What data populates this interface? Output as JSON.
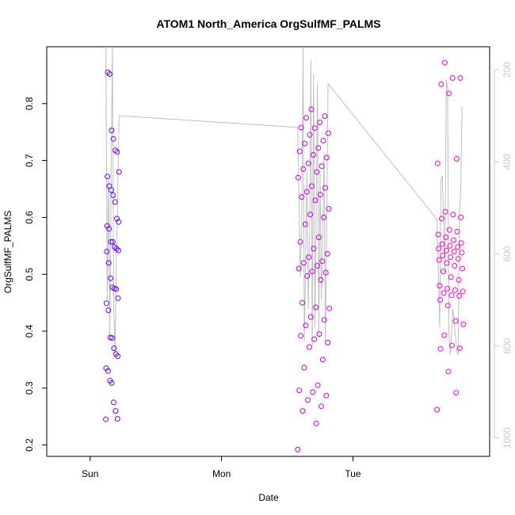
{
  "chart_data": {
    "type": "scatter",
    "title": "ATOM1 North_America OrgSulfMF_PALMS",
    "xlabel": "Date",
    "ylabel": "OrgSulfMF_PALMS",
    "x_ticks": [
      "Sun",
      "Mon",
      "Tue"
    ],
    "y_ticks": [
      "0.2",
      "0.3",
      "0.4",
      "0.5",
      "0.6",
      "0.7",
      "0.8"
    ],
    "ylim": [
      0.18,
      0.9
    ],
    "y2_ticks": [
      "200",
      "400",
      "600",
      "800",
      "1000"
    ],
    "y2lim": [
      1040,
      150
    ],
    "y2_note": "pressure profile (right axis, inverted) drawn as grey line",
    "color_scale": [
      "#6a00ff",
      "#ff00cc"
    ],
    "grid": false,
    "clusters": [
      {
        "name": "flight1",
        "x_start": 0.12,
        "x_end": 0.22,
        "values": [
          0.245,
          0.246,
          0.26,
          0.275,
          0.309,
          0.313,
          0.33,
          0.335,
          0.356,
          0.36,
          0.37,
          0.388,
          0.389,
          0.437,
          0.449,
          0.458,
          0.474,
          0.475,
          0.477,
          0.493,
          0.52,
          0.54,
          0.542,
          0.545,
          0.548,
          0.557,
          0.557,
          0.58,
          0.585,
          0.592,
          0.598,
          0.627,
          0.639,
          0.648,
          0.655,
          0.672,
          0.68,
          0.715,
          0.718,
          0.738,
          0.753,
          0.852,
          0.855
        ]
      },
      {
        "name": "flight2",
        "x_start": 1.58,
        "x_end": 1.82,
        "values": [
          0.192,
          0.238,
          0.26,
          0.268,
          0.279,
          0.287,
          0.293,
          0.296,
          0.305,
          0.336,
          0.35,
          0.372,
          0.38,
          0.386,
          0.392,
          0.395,
          0.41,
          0.42,
          0.425,
          0.44,
          0.442,
          0.45,
          0.49,
          0.497,
          0.503,
          0.505,
          0.51,
          0.515,
          0.52,
          0.523,
          0.53,
          0.536,
          0.545,
          0.557,
          0.565,
          0.588,
          0.6,
          0.605,
          0.615,
          0.63,
          0.636,
          0.64,
          0.645,
          0.652,
          0.655,
          0.67,
          0.68,
          0.685,
          0.69,
          0.695,
          0.705,
          0.71,
          0.716,
          0.722,
          0.73,
          0.735,
          0.745,
          0.748,
          0.757,
          0.758,
          0.767,
          0.775,
          0.778,
          0.79
        ]
      },
      {
        "name": "flight3",
        "x_start": 2.64,
        "x_end": 2.84,
        "values": [
          0.262,
          0.292,
          0.329,
          0.369,
          0.37,
          0.375,
          0.393,
          0.412,
          0.418,
          0.445,
          0.455,
          0.462,
          0.463,
          0.467,
          0.47,
          0.472,
          0.475,
          0.48,
          0.49,
          0.495,
          0.505,
          0.51,
          0.515,
          0.52,
          0.525,
          0.527,
          0.53,
          0.533,
          0.538,
          0.54,
          0.542,
          0.545,
          0.548,
          0.55,
          0.553,
          0.555,
          0.56,
          0.565,
          0.57,
          0.575,
          0.578,
          0.598,
          0.6,
          0.605,
          0.61,
          0.695,
          0.703,
          0.818,
          0.834,
          0.845,
          0.845,
          0.872
        ]
      }
    ],
    "pressure_line": [
      [
        0.12,
        150
      ],
      [
        0.13,
        700
      ],
      [
        0.14,
        430
      ],
      [
        0.15,
        780
      ],
      [
        0.16,
        420
      ],
      [
        0.17,
        150
      ],
      [
        0.18,
        720
      ],
      [
        0.19,
        820
      ],
      [
        0.2,
        600
      ],
      [
        0.21,
        480
      ],
      [
        0.22,
        300
      ],
      [
        1.58,
        325
      ],
      [
        1.6,
        650
      ],
      [
        1.61,
        540
      ],
      [
        1.62,
        150
      ],
      [
        1.63,
        790
      ],
      [
        1.65,
        420
      ],
      [
        1.66,
        720
      ],
      [
        1.67,
        560
      ],
      [
        1.68,
        180
      ],
      [
        1.69,
        800
      ],
      [
        1.7,
        210
      ],
      [
        1.71,
        760
      ],
      [
        1.72,
        520
      ],
      [
        1.73,
        230
      ],
      [
        1.74,
        780
      ],
      [
        1.75,
        420
      ],
      [
        1.76,
        700
      ],
      [
        1.77,
        560
      ],
      [
        1.78,
        380
      ],
      [
        1.79,
        790
      ],
      [
        1.8,
        540
      ],
      [
        1.81,
        230
      ],
      [
        2.64,
        525
      ],
      [
        2.66,
        760
      ],
      [
        2.67,
        440
      ],
      [
        2.68,
        430
      ],
      [
        2.7,
        640
      ],
      [
        2.71,
        220
      ],
      [
        2.72,
        240
      ],
      [
        2.73,
        770
      ],
      [
        2.74,
        820
      ],
      [
        2.76,
        720
      ],
      [
        2.78,
        780
      ],
      [
        2.79,
        810
      ],
      [
        2.8,
        820
      ],
      [
        2.81,
        520
      ],
      [
        2.82,
        460
      ],
      [
        2.83,
        280
      ]
    ]
  }
}
